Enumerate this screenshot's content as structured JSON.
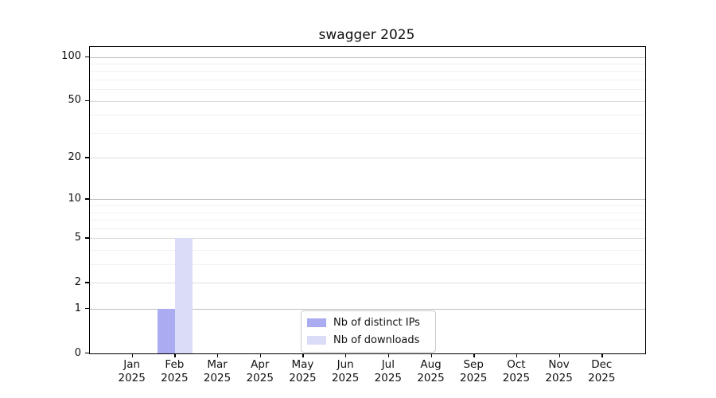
{
  "chart_data": {
    "type": "bar",
    "title": "swagger 2025",
    "x_categories": [
      "Jan",
      "Feb",
      "Mar",
      "Apr",
      "May",
      "Jun",
      "Jul",
      "Aug",
      "Sep",
      "Oct",
      "Nov",
      "Dec"
    ],
    "x_year_label": "2025",
    "series": [
      {
        "name": "Nb of distinct IPs",
        "color": "#ababf2",
        "values": [
          0,
          1,
          0,
          0,
          0,
          0,
          0,
          0,
          0,
          0,
          0,
          0
        ]
      },
      {
        "name": "Nb of downloads",
        "color": "#dbddf8",
        "values": [
          0,
          5,
          0,
          0,
          0,
          0,
          0,
          0,
          0,
          0,
          0,
          0
        ]
      }
    ],
    "y_axis": {
      "scale": "log(1+y)",
      "tick_values": [
        0,
        1,
        2,
        5,
        10,
        20,
        50,
        100
      ],
      "decade_gridlines": [
        1,
        10,
        100
      ],
      "mid_gridlines": [
        2,
        5,
        20,
        50
      ],
      "minor_gridlines": [
        3,
        4,
        6,
        7,
        8,
        9,
        30,
        40,
        60,
        70,
        80,
        90
      ],
      "ylim": [
        0,
        100
      ]
    },
    "legend": {
      "position": "lower center",
      "entries": [
        "Nb of distinct IPs",
        "Nb of downloads"
      ]
    },
    "grid": "horizontal"
  },
  "colors": {
    "background": "#ffffff",
    "axis": "#000000",
    "text": "#111111",
    "grid_decade": "#bdbdbd",
    "grid_mid": "#dcdcdc",
    "grid_minor": "#f1f1f1",
    "legend_border": "#c9c9c9",
    "series_distinct_ips": "#ababf2",
    "series_downloads": "#dbddf8"
  }
}
